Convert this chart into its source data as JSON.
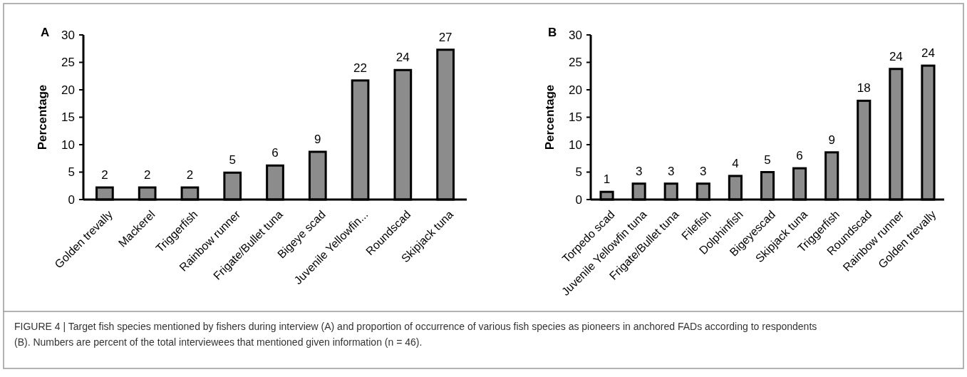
{
  "chart_data": [
    {
      "type": "bar",
      "title": "A",
      "ylabel": "Percentage",
      "categories": [
        "Golden trevally",
        "Mackerel",
        "Triggerfish",
        "Rainbow runner",
        "Frigate/Bullet tuna",
        "Bigeye scad",
        "Juvenile Yellowfin...",
        "Roundscad",
        "Skipjack tuna"
      ],
      "values": [
        2.2,
        2.2,
        2.2,
        4.9,
        6.2,
        8.7,
        21.7,
        23.6,
        27.3
      ],
      "value_labels": [
        "2",
        "2",
        "2",
        "5",
        "6",
        "9",
        "22",
        "24",
        "27"
      ],
      "color": "#8c8c8c",
      "ylim": [
        0,
        30
      ],
      "yticks": [
        0,
        5,
        10,
        15,
        20,
        25,
        30
      ],
      "grid": false
    },
    {
      "type": "bar",
      "title": "B",
      "ylabel": "Percentage",
      "categories": [
        "Torpedo scad",
        "Juvenile Yellowfin tuna",
        "Frigate/Bullet tuna",
        "Filefish",
        "Dolphinfish",
        "Bigeyescad",
        "Skipjack tuna",
        "Triggerfish",
        "Roundscad",
        "Rainbow runner",
        "Golden trevally"
      ],
      "values": [
        1.4,
        2.9,
        2.9,
        2.9,
        4.3,
        5.0,
        5.7,
        8.6,
        18,
        23.8,
        24.4
      ],
      "value_labels": [
        "1",
        "3",
        "3",
        "3",
        "4",
        "5",
        "6",
        "9",
        "18",
        "24",
        "24"
      ],
      "color": "#8c8c8c",
      "ylim": [
        0,
        30
      ],
      "yticks": [
        0,
        5,
        10,
        15,
        20,
        25,
        30
      ],
      "grid": false,
      "annotations": [
        "FIGURE 4 | Target fish species mentioned by fishers during interview (A) and proportion of occurrence of various fish species as pioneers in anchored FADs according to respondents (B). Numbers are percent of the total interviewees that mentioned given information (n = 46)."
      ]
    }
  ]
}
